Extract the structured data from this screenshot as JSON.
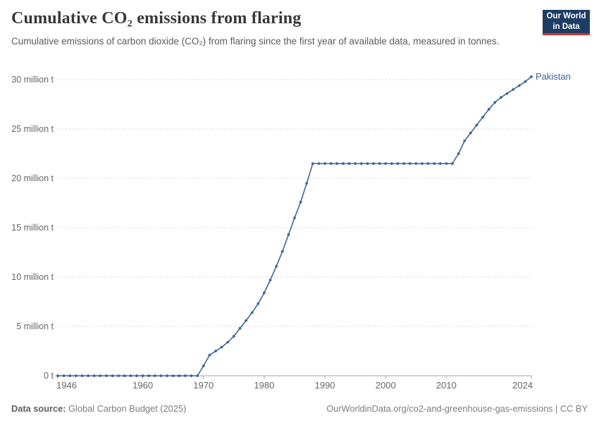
{
  "header": {
    "title": "Cumulative CO₂ emissions from flaring",
    "subtitle": "Cumulative emissions of carbon dioxide (CO₂) from flaring since the first year of available data, measured in tonnes.",
    "logo": {
      "line1": "Our World",
      "line2": "in Data"
    }
  },
  "chart_data": {
    "type": "line",
    "title": "Cumulative CO₂ emissions from flaring",
    "subtitle": "Cumulative emissions of carbon dioxide (CO₂) from flaring since the first year of available data, measured in tonnes.",
    "entity_label": "Pakistan",
    "xlim": [
      1946,
      2024
    ],
    "ylim": [
      0,
      30
    ],
    "grid": "horizontal-dashed",
    "legend_position": "end-of-line-label",
    "x_ticks": [
      1946,
      1960,
      1970,
      1980,
      1990,
      2000,
      2010,
      2024
    ],
    "y_ticks": [
      {
        "v": 0,
        "label": "0 t"
      },
      {
        "v": 5,
        "label": "5 million t"
      },
      {
        "v": 10,
        "label": "10 million t"
      },
      {
        "v": 15,
        "label": "15 million t"
      },
      {
        "v": 20,
        "label": "20 million t"
      },
      {
        "v": 25,
        "label": "25 million t"
      },
      {
        "v": 30,
        "label": "30 million t"
      }
    ],
    "unit": "million tonnes",
    "series": [
      {
        "name": "Pakistan",
        "color": "#3d649c",
        "x": [
          1946,
          1947,
          1948,
          1949,
          1950,
          1951,
          1952,
          1953,
          1954,
          1955,
          1956,
          1957,
          1958,
          1959,
          1960,
          1961,
          1962,
          1963,
          1964,
          1965,
          1966,
          1967,
          1968,
          1969,
          1970,
          1971,
          1972,
          1973,
          1974,
          1975,
          1976,
          1977,
          1978,
          1979,
          1980,
          1981,
          1982,
          1983,
          1984,
          1985,
          1986,
          1987,
          1988,
          1989,
          1990,
          1991,
          1992,
          1993,
          1994,
          1995,
          1996,
          1997,
          1998,
          1999,
          2000,
          2001,
          2002,
          2003,
          2004,
          2005,
          2006,
          2007,
          2008,
          2009,
          2010,
          2011,
          2012,
          2013,
          2014,
          2015,
          2016,
          2017,
          2018,
          2019,
          2020,
          2021,
          2022,
          2023,
          2024
        ],
        "values": [
          0,
          0,
          0,
          0,
          0,
          0,
          0,
          0,
          0,
          0,
          0,
          0,
          0,
          0,
          0,
          0,
          0,
          0,
          0,
          0,
          0,
          0,
          0,
          0,
          1.0,
          2.1,
          2.5,
          2.9,
          3.4,
          4.0,
          4.8,
          5.6,
          6.4,
          7.3,
          8.4,
          9.7,
          11.1,
          12.6,
          14.3,
          16.0,
          17.6,
          19.5,
          21.5,
          21.5,
          21.5,
          21.5,
          21.5,
          21.5,
          21.5,
          21.5,
          21.5,
          21.5,
          21.5,
          21.5,
          21.5,
          21.5,
          21.5,
          21.5,
          21.5,
          21.5,
          21.5,
          21.5,
          21.5,
          21.5,
          21.5,
          21.5,
          22.5,
          23.8,
          24.6,
          25.4,
          26.2,
          27.0,
          27.7,
          28.2,
          28.6,
          29.0,
          29.4,
          29.8,
          30.3
        ]
      }
    ]
  },
  "colors": {
    "line": "#3d649c",
    "grid": "#dcdcdc",
    "axis": "#a5a5a5",
    "tick_text": "#666666",
    "title_text": "#383838",
    "subtitle_text": "#5b5b5b",
    "footer_text": "#7d7d7d",
    "logo_bg": "#1d3d63",
    "logo_red": "#d0342c"
  },
  "footer": {
    "source_label": "Data source:",
    "source_value": "Global Carbon Budget (2025)",
    "credit": "OurWorldinData.org/co2-and-greenhouse-gas-emissions | CC BY"
  }
}
